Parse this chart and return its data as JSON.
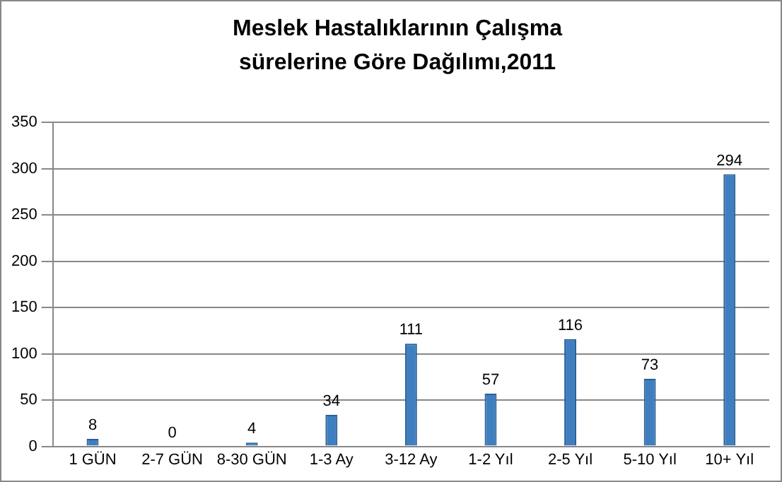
{
  "chart_data": {
    "type": "bar",
    "title": "Meslek Hastalıklarının Çalışma sürelerine Göre Dağılımı,2011",
    "categories": [
      "1 GÜN",
      "2-7 GÜN",
      "8-30 GÜN",
      "1-3 Ay",
      "3-12 Ay",
      "1-2 Yıl",
      "2-5 Yıl",
      "5-10 Yıl",
      "10+ Yıl"
    ],
    "values": [
      8,
      0,
      4,
      34,
      111,
      57,
      116,
      73,
      294
    ],
    "color": "#3f7fc0",
    "ylim": [
      0,
      350
    ],
    "yticks": [
      0,
      50,
      100,
      150,
      200,
      250,
      300,
      350
    ],
    "grid": "y",
    "data_labels": true
  }
}
